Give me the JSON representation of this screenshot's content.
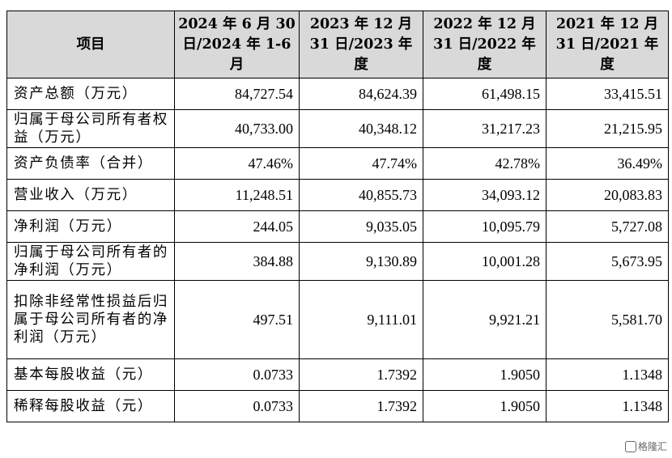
{
  "table": {
    "headers": [
      "项目",
      "2024 年 6 月 30 日/2024 年 1-6 月",
      "2023 年 12 月 31 日/2023 年度",
      "2022 年 12 月 31 日/2022 年度",
      "2021 年 12 月 31 日/2021 年度"
    ],
    "rows": [
      {
        "label": "资产总额（万元）",
        "values": [
          "84,727.54",
          "84,624.39",
          "61,498.15",
          "33,415.51"
        ]
      },
      {
        "label": "归属于母公司所有者权益（万元）",
        "values": [
          "40,733.00",
          "40,348.12",
          "31,217.23",
          "21,215.95"
        ]
      },
      {
        "label": "资产负债率（合并）",
        "values": [
          "47.46%",
          "47.74%",
          "42.78%",
          "36.49%"
        ]
      },
      {
        "label": "营业收入（万元）",
        "values": [
          "11,248.51",
          "40,855.73",
          "34,093.12",
          "20,083.83"
        ]
      },
      {
        "label": "净利润（万元）",
        "values": [
          "244.05",
          "9,035.05",
          "10,095.79",
          "5,727.08"
        ]
      },
      {
        "label": "归属于母公司所有者的净利润（万元）",
        "values": [
          "384.88",
          "9,130.89",
          "10,001.28",
          "5,673.95"
        ]
      },
      {
        "label": "扣除非经常性损益后归属于母公司所有者的净利润（万元）",
        "values": [
          "497.51",
          "9,111.01",
          "9,921.21",
          "5,581.70"
        ]
      },
      {
        "label": "基本每股收益（元）",
        "values": [
          "0.0733",
          "1.7392",
          "1.9050",
          "1.1348"
        ]
      },
      {
        "label": "稀释每股收益（元）",
        "values": [
          "0.0733",
          "1.7392",
          "1.9050",
          "1.1348"
        ]
      }
    ]
  },
  "watermark": {
    "text": "格隆汇"
  }
}
